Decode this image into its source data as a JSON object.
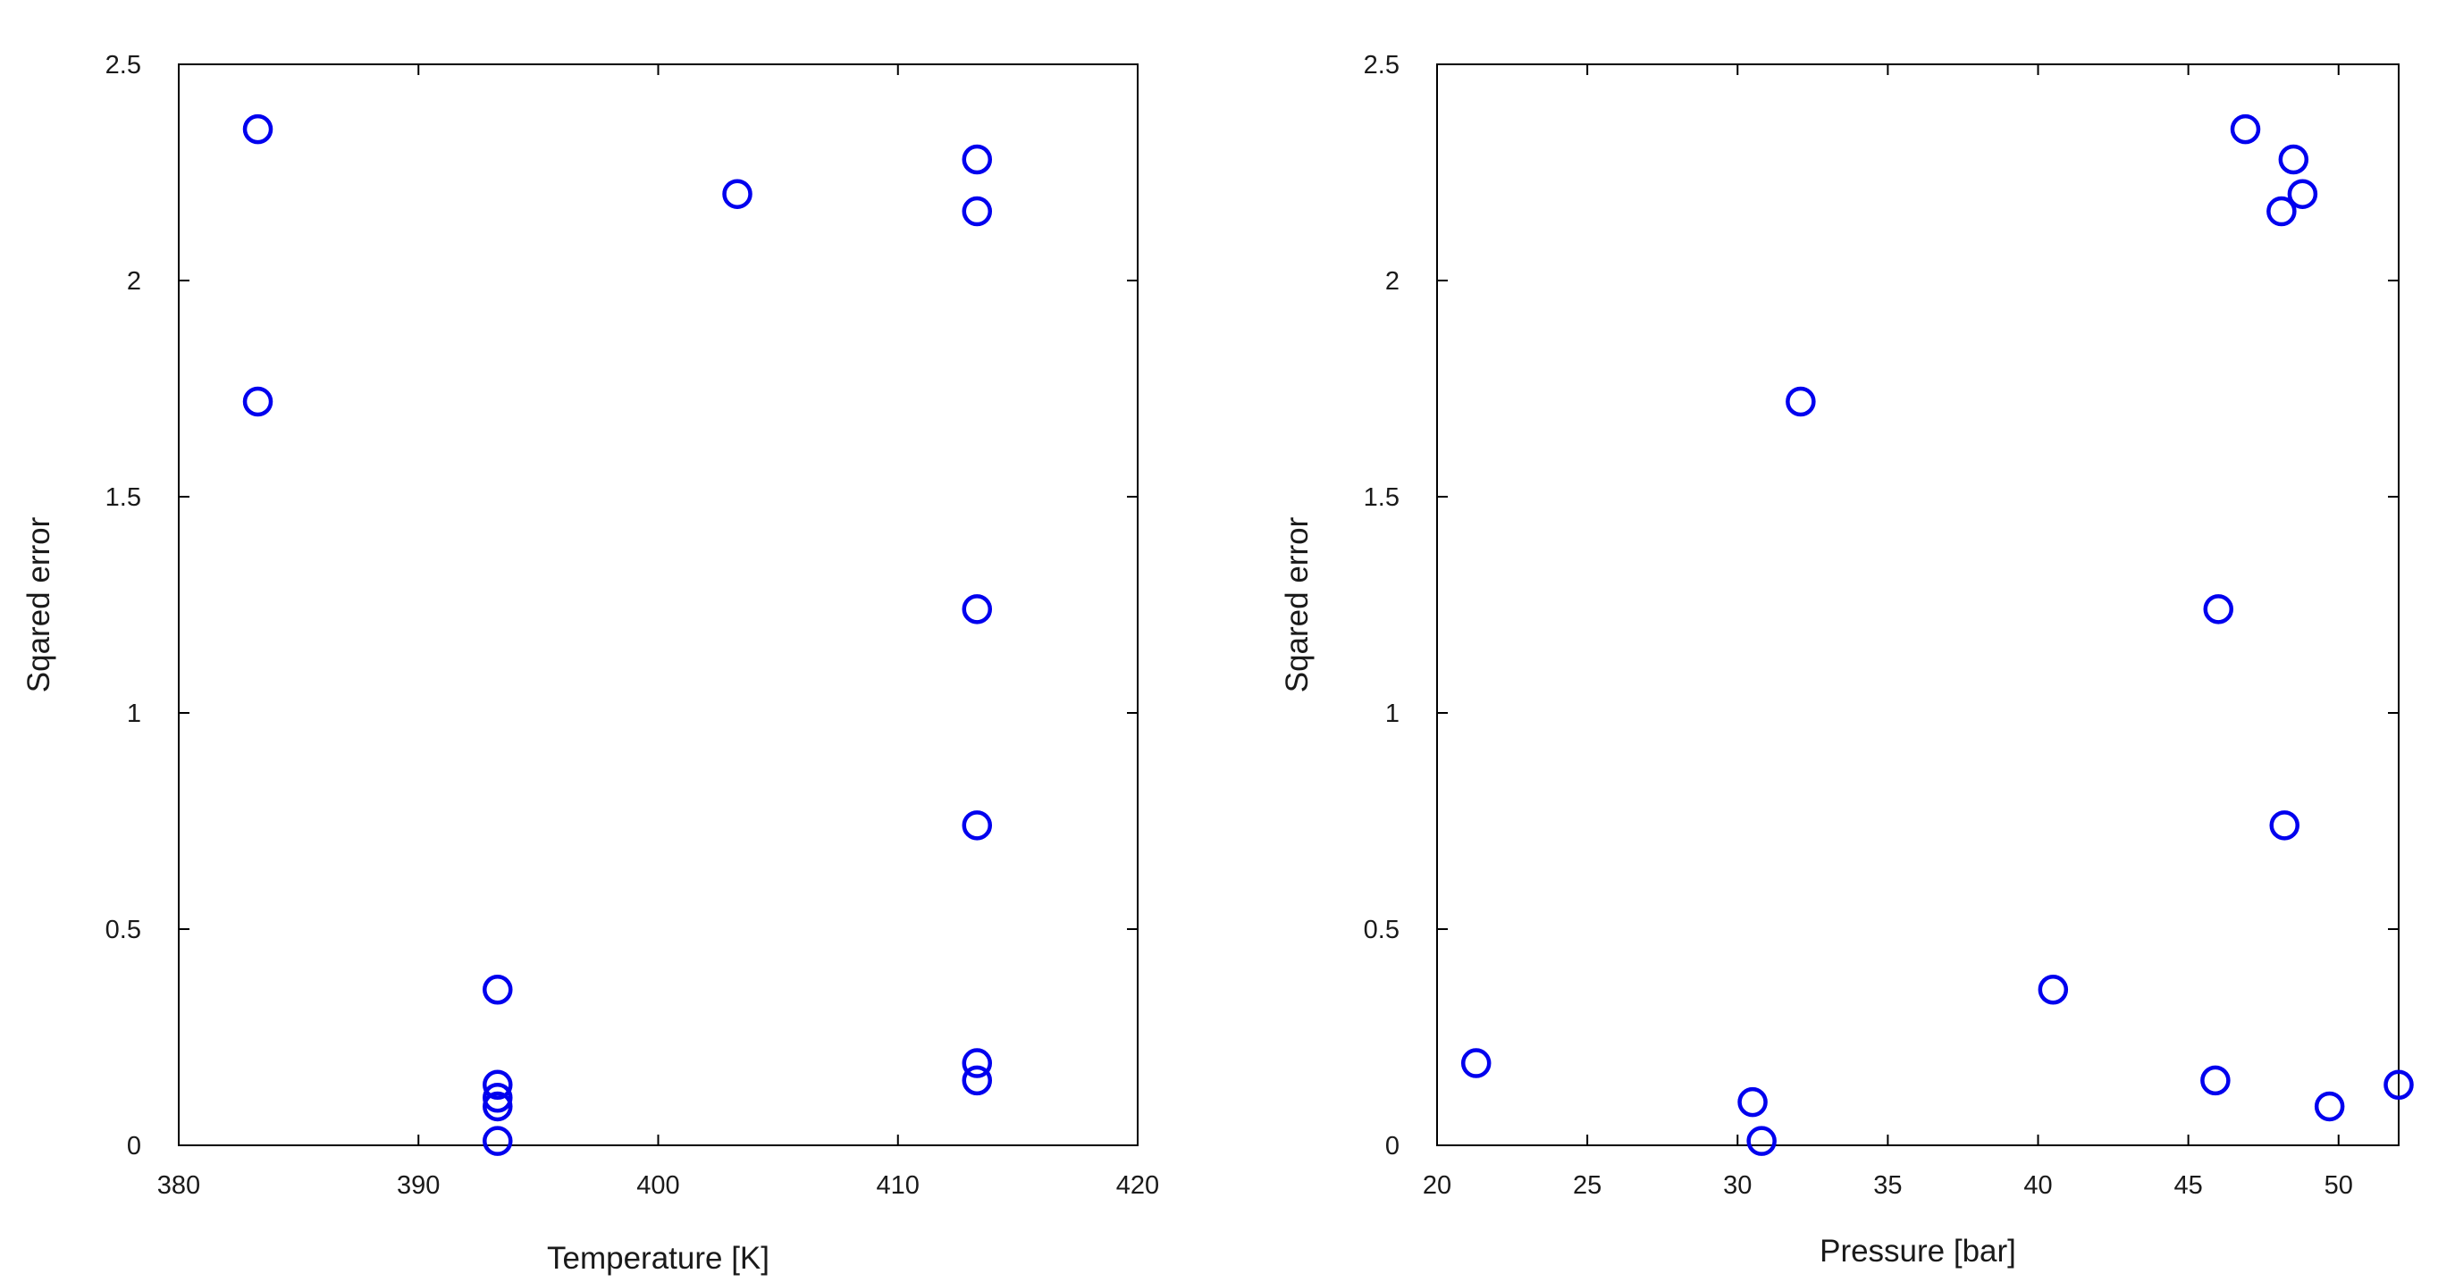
{
  "chart_data": [
    {
      "type": "scatter",
      "xlabel": "Temperature [K]",
      "ylabel": "Sqared error",
      "xlim": [
        380,
        420
      ],
      "ylim": [
        0,
        2.5
      ],
      "xticks": [
        380,
        390,
        400,
        410,
        420
      ],
      "yticks": [
        0,
        0.5,
        1,
        1.5,
        2,
        2.5
      ],
      "grid": false,
      "marker_color": "#0000ee",
      "points": [
        {
          "x": 383.3,
          "y": 2.35
        },
        {
          "x": 383.3,
          "y": 1.72
        },
        {
          "x": 393.3,
          "y": 0.36
        },
        {
          "x": 393.3,
          "y": 0.14
        },
        {
          "x": 393.3,
          "y": 0.11
        },
        {
          "x": 393.3,
          "y": 0.09
        },
        {
          "x": 393.3,
          "y": 0.01
        },
        {
          "x": 403.3,
          "y": 2.2
        },
        {
          "x": 413.3,
          "y": 2.28
        },
        {
          "x": 413.3,
          "y": 2.16
        },
        {
          "x": 413.3,
          "y": 1.24
        },
        {
          "x": 413.3,
          "y": 0.74
        },
        {
          "x": 413.3,
          "y": 0.19
        },
        {
          "x": 413.3,
          "y": 0.15
        }
      ]
    },
    {
      "type": "scatter",
      "xlabel": "Pressure [bar]",
      "ylabel": "Sqared error",
      "xlim": [
        20,
        52
      ],
      "ylim": [
        0,
        2.5
      ],
      "xticks": [
        20,
        25,
        30,
        35,
        40,
        45,
        50
      ],
      "yticks": [
        0,
        0.5,
        1,
        1.5,
        2,
        2.5
      ],
      "grid": false,
      "marker_color": "#0000ee",
      "points": [
        {
          "x": 21.3,
          "y": 0.19
        },
        {
          "x": 30.5,
          "y": 0.1
        },
        {
          "x": 30.8,
          "y": 0.01
        },
        {
          "x": 32.1,
          "y": 1.72
        },
        {
          "x": 40.5,
          "y": 0.36
        },
        {
          "x": 45.9,
          "y": 0.15
        },
        {
          "x": 46.0,
          "y": 1.24
        },
        {
          "x": 46.9,
          "y": 2.35
        },
        {
          "x": 48.1,
          "y": 2.16
        },
        {
          "x": 48.2,
          "y": 0.74
        },
        {
          "x": 48.5,
          "y": 2.28
        },
        {
          "x": 48.8,
          "y": 2.2
        },
        {
          "x": 49.7,
          "y": 0.09
        },
        {
          "x": 52.0,
          "y": 0.14
        }
      ]
    }
  ]
}
